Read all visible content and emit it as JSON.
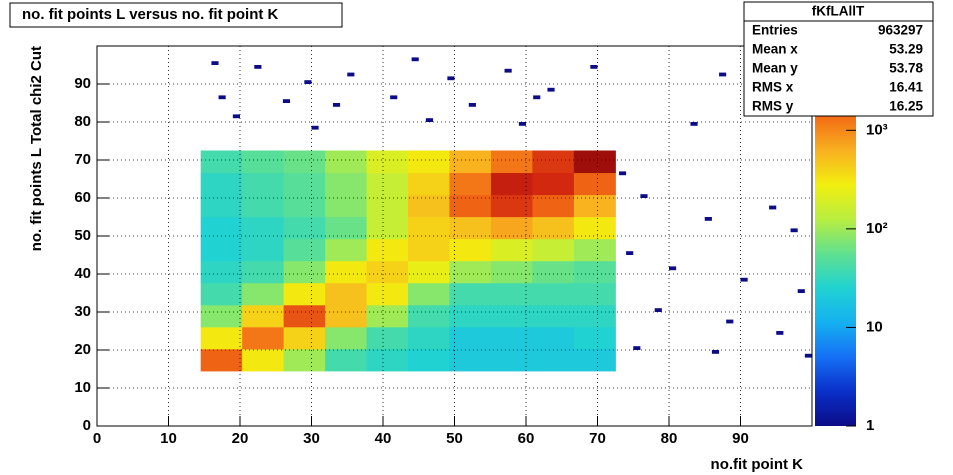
{
  "chart_data": {
    "type": "heatmap",
    "title": "no. fit points L versus no. fit point K",
    "x_label": "no.fit point K",
    "y_label": "no. fit points  L   Total chi2 Cut",
    "xlim": [
      0,
      100
    ],
    "ylim": [
      0,
      100
    ],
    "xticks": [
      0,
      10,
      20,
      30,
      40,
      50,
      60,
      70,
      80,
      90
    ],
    "yticks": [
      0,
      10,
      20,
      30,
      40,
      50,
      60,
      70,
      80,
      90
    ],
    "grid": true,
    "z_log": true,
    "zlim": [
      1,
      7000
    ],
    "zticks": [
      1,
      10,
      {
        "value": 100,
        "label": "10²"
      },
      {
        "value": 1000,
        "label": "10³"
      }
    ],
    "x_bins": [
      14.5,
      20.3,
      26.1,
      31.9,
      37.7,
      43.5,
      49.3,
      55.1,
      60.9,
      66.7,
      72.5
    ],
    "y_bins": [
      14.5,
      20.3,
      26.1,
      31.9,
      37.7,
      43.5,
      49.3,
      55.1,
      60.9,
      66.7,
      72.5
    ],
    "z": [
      [
        1500,
        300,
        100,
        40,
        30,
        25,
        20,
        20,
        20,
        20
      ],
      [
        300,
        1200,
        400,
        80,
        40,
        30,
        20,
        20,
        20,
        25
      ],
      [
        80,
        400,
        1800,
        500,
        100,
        40,
        30,
        30,
        30,
        30
      ],
      [
        40,
        80,
        300,
        500,
        300,
        80,
        40,
        40,
        40,
        40
      ],
      [
        30,
        40,
        80,
        300,
        400,
        250,
        100,
        80,
        60,
        50
      ],
      [
        25,
        30,
        50,
        100,
        300,
        400,
        300,
        200,
        150,
        100
      ],
      [
        25,
        30,
        40,
        60,
        150,
        400,
        500,
        700,
        500,
        300
      ],
      [
        30,
        40,
        50,
        80,
        150,
        500,
        1500,
        2500,
        1500,
        600
      ],
      [
        30,
        40,
        50,
        80,
        150,
        400,
        1200,
        3500,
        3000,
        1500
      ],
      [
        40,
        50,
        60,
        100,
        200,
        300,
        600,
        1200,
        2500,
        5000
      ]
    ],
    "outliers": {
      "x": [
        16,
        22,
        29,
        35,
        44,
        49,
        57,
        63,
        69,
        87,
        17,
        26,
        33,
        41,
        52,
        61,
        19,
        30,
        46,
        59,
        83,
        76,
        85,
        94,
        74,
        80,
        90,
        98,
        78,
        88,
        95,
        75,
        86,
        99,
        97,
        73
      ],
      "y": [
        95,
        94,
        90,
        92,
        96,
        91,
        93,
        88,
        94,
        92,
        86,
        85,
        84,
        86,
        84,
        86,
        81,
        78,
        80,
        79,
        79,
        60,
        54,
        57,
        45,
        41,
        38,
        35,
        30,
        27,
        24,
        20,
        19,
        18,
        51,
        66
      ],
      "values": [
        1,
        1,
        1,
        1,
        1,
        1,
        1,
        1,
        1,
        1,
        1,
        1,
        1,
        1,
        1,
        1,
        1,
        1,
        1,
        1,
        1,
        1,
        1,
        1,
        1,
        1,
        1,
        1,
        1,
        1,
        1,
        1,
        1,
        1,
        1,
        1
      ]
    },
    "stats": {
      "title": "fKfLAllT",
      "rows": [
        [
          "Entries",
          963297
        ],
        [
          "Mean x",
          53.29
        ],
        [
          "Mean y",
          53.78
        ],
        [
          "RMS x",
          16.41
        ],
        [
          "RMS y",
          16.25
        ]
      ]
    }
  }
}
